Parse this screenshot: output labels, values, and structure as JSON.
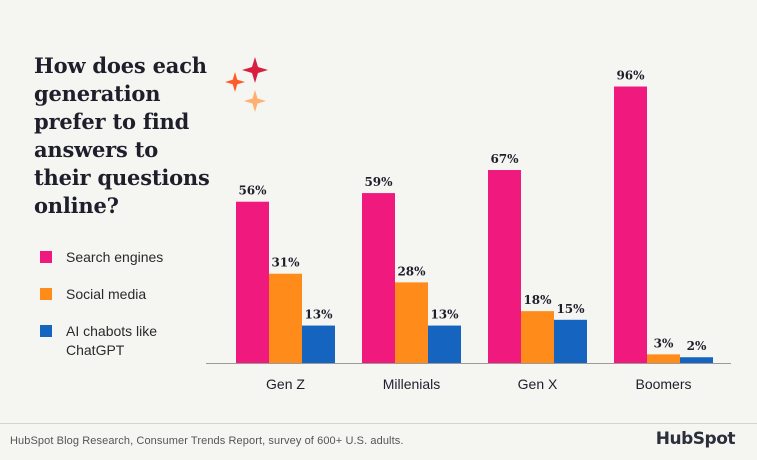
{
  "title": "How does each\ngeneration\nprefer to find\nanswers to\ntheir questions\nonline?",
  "legend": [
    {
      "label": "Search engines",
      "color": "#f0197d"
    },
    {
      "label": "Social media",
      "color": "#ff8c1a"
    },
    {
      "label": "AI chabots like ChatGPT",
      "color": "#1565c0"
    }
  ],
  "colors": {
    "baseline": "#9a9a9a",
    "text": "#1f1f2b",
    "background": "#f5f5f2"
  },
  "decoration": {
    "icons": [
      "sparkle-red-icon",
      "sparkle-orange-icon",
      "sparkle-peach-icon"
    ]
  },
  "chart_data": {
    "type": "bar",
    "categories": [
      "Gen Z",
      "Millenials",
      "Gen X",
      "Boomers"
    ],
    "series": [
      {
        "name": "Search engines",
        "values": [
          56,
          59,
          67,
          96
        ],
        "labels": [
          "56%",
          "59%",
          "67%",
          "96%"
        ],
        "color": "#f0197d"
      },
      {
        "name": "Social media",
        "values": [
          31,
          28,
          18,
          3
        ],
        "labels": [
          "31%",
          "28%",
          "18%",
          "3%"
        ],
        "color": "#ff8c1a"
      },
      {
        "name": "AI chabots like ChatGPT",
        "values": [
          13,
          13,
          15,
          2
        ],
        "labels": [
          "13%",
          "13%",
          "15%",
          "2%"
        ],
        "color": "#1565c0"
      }
    ],
    "ylim": [
      0,
      100
    ],
    "grid": false,
    "legend_position": "left"
  },
  "footer": {
    "source": "HubSpot Blog Research, Consumer Trends Report, survey of 600+ U.S. adults.",
    "brand": "HubSpot"
  }
}
